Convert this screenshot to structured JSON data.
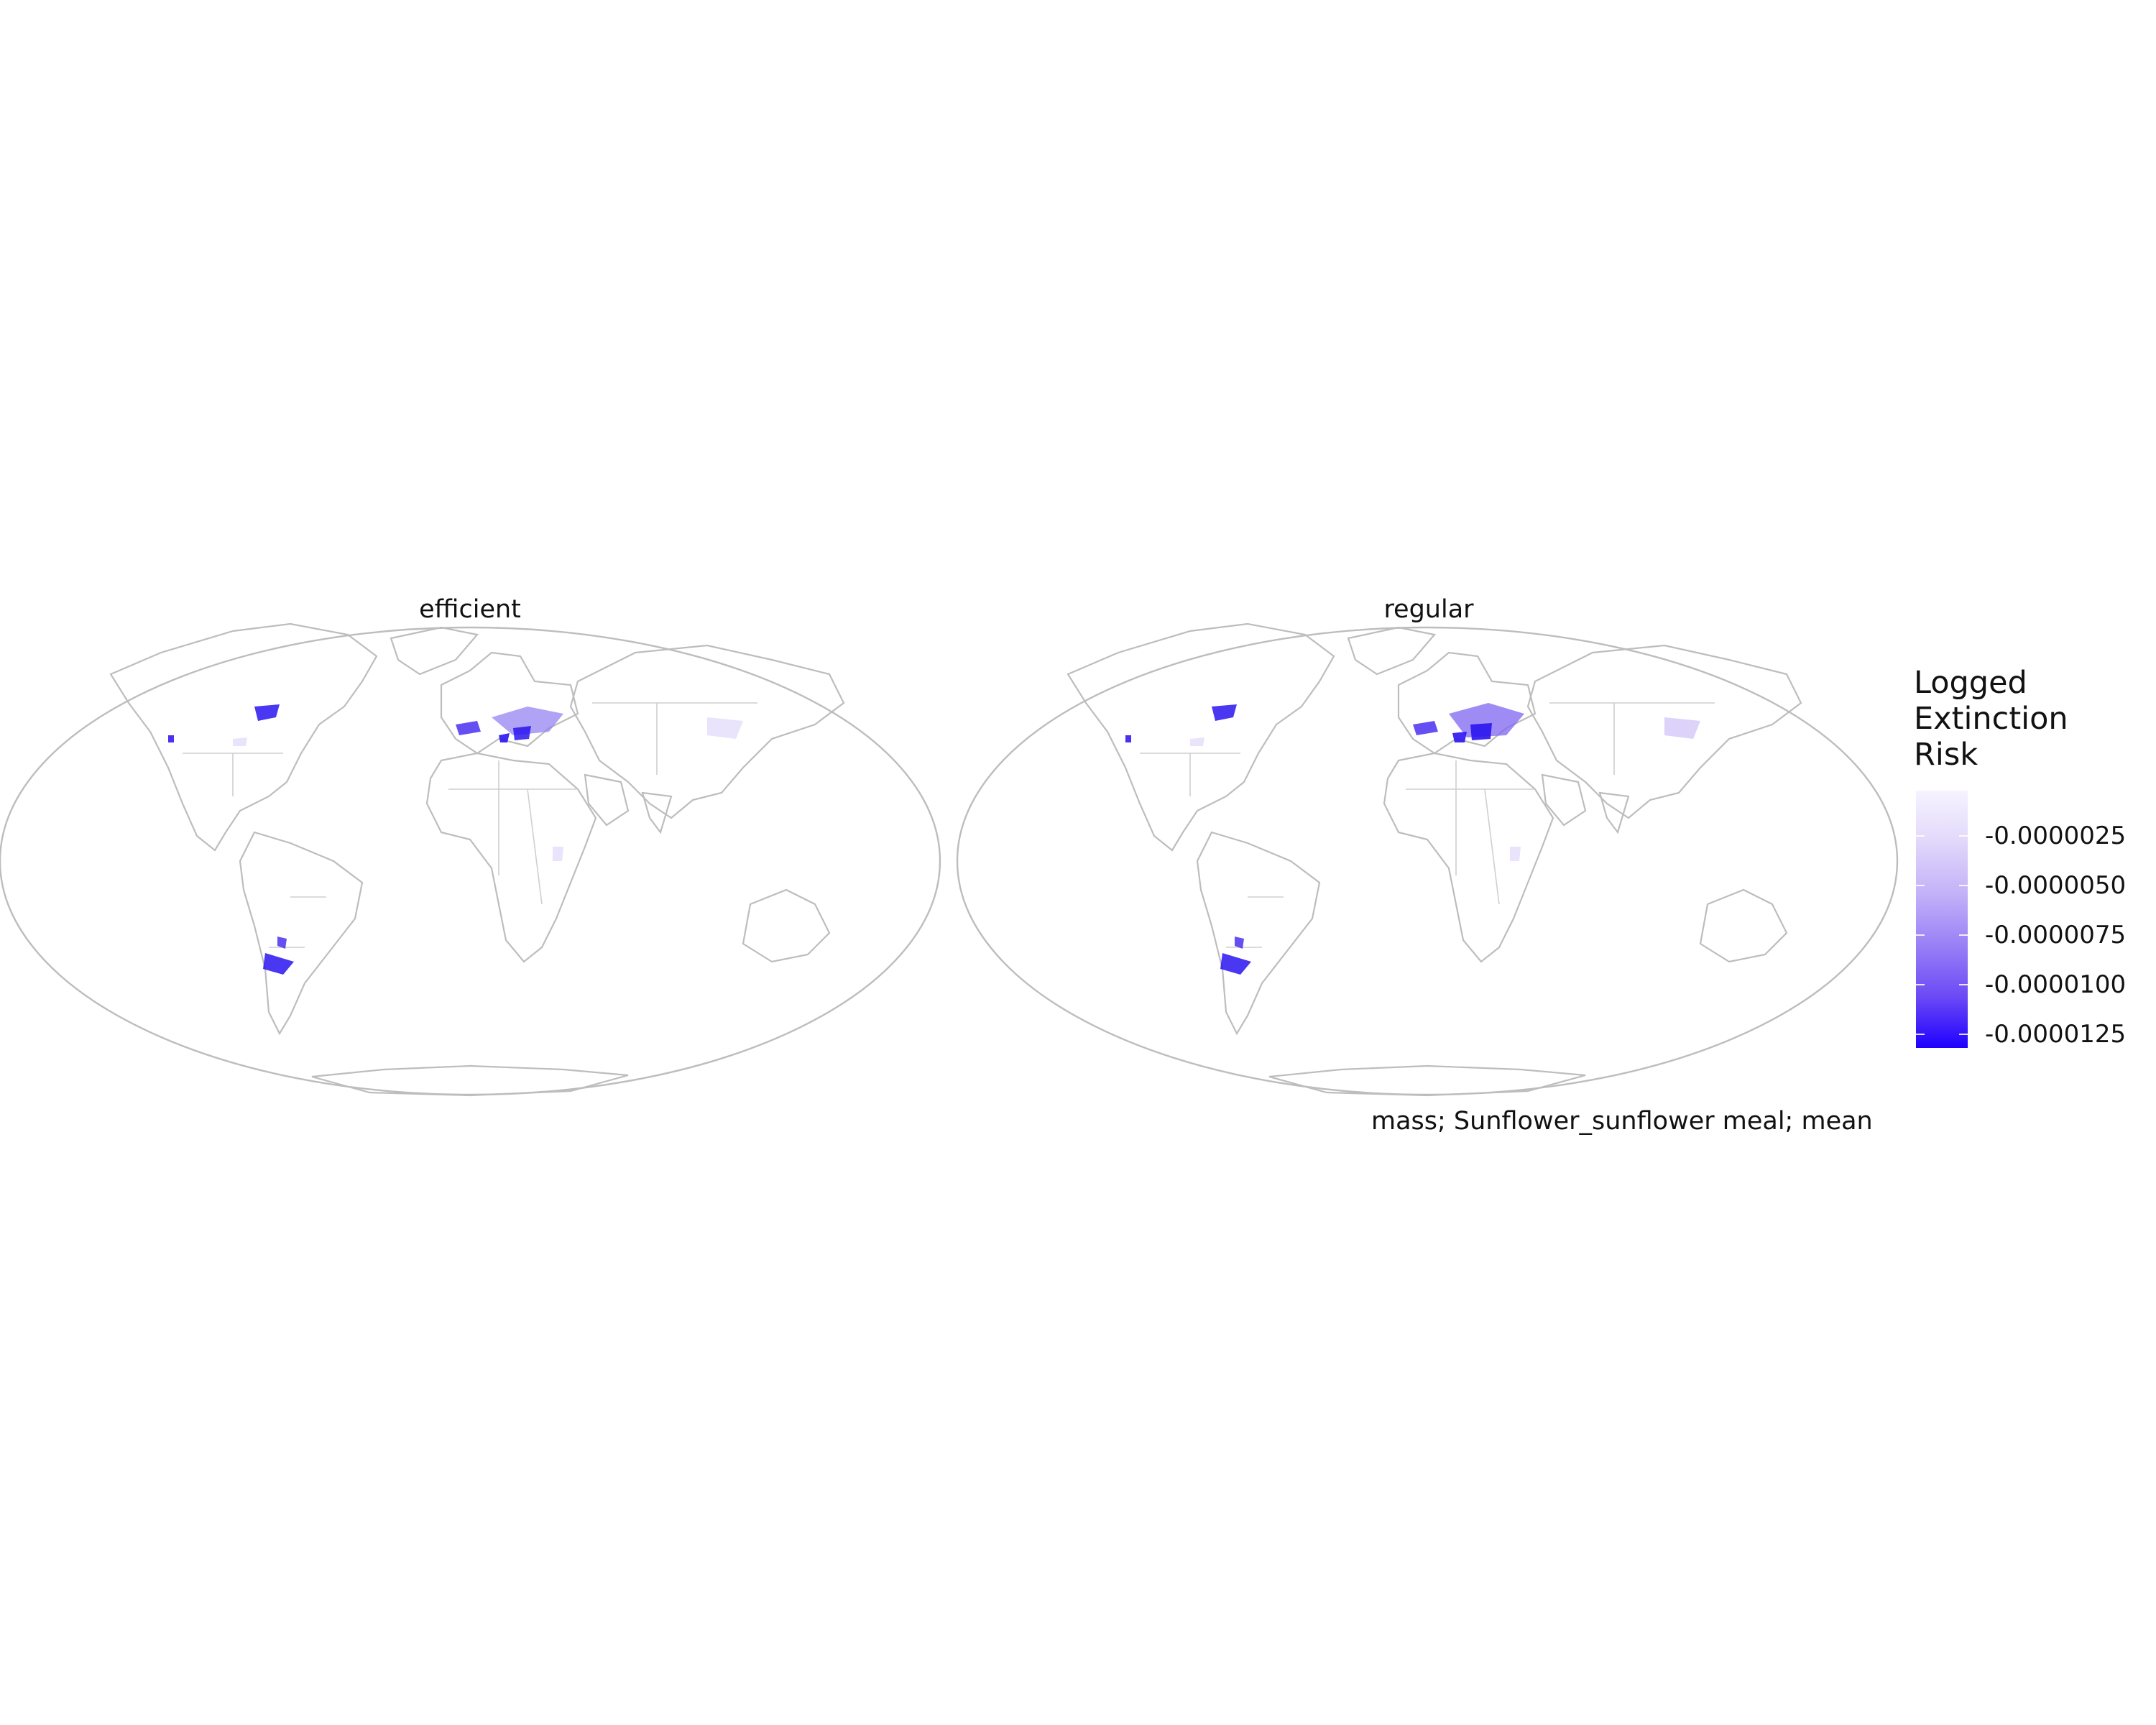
{
  "panels": [
    {
      "title": "efficient"
    },
    {
      "title": "regular"
    }
  ],
  "legend": {
    "title_lines": [
      "Logged",
      "Extinction",
      "Risk"
    ],
    "ticks": [
      "-0.0000025",
      "-0.0000050",
      "-0.0000075",
      "-0.0000100",
      "-0.0000125"
    ],
    "low_color": "#1f00ff",
    "high_color": "#f6f3ff"
  },
  "caption": "mass; Sunflower_sunflower meal; mean",
  "colors": {
    "outline": "#bdbdbd",
    "high_risk": "#2a14f0",
    "mid_risk": "#8f7af0",
    "low_risk": "#e7e0fb"
  }
}
